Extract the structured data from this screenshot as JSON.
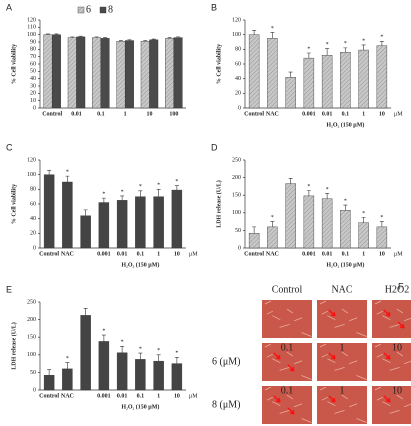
{
  "chart_data": [
    {
      "type": "grouped_bar",
      "panel": "A",
      "y_label": "% Cell viability",
      "categories": [
        "Control",
        "0.01",
        "0.1",
        "1",
        "10",
        "100"
      ],
      "series": [
        {
          "name": "6",
          "color": "#c8c8c8",
          "hatch": true,
          "values": [
            100,
            96,
            96,
            91,
            91,
            95
          ],
          "errors": [
            1,
            1,
            1,
            1,
            1,
            1
          ]
        },
        {
          "name": "8",
          "color": "#4a4a4a",
          "hatch": false,
          "values": [
            100,
            97,
            95,
            92,
            93,
            96
          ],
          "errors": [
            1,
            1,
            1,
            1,
            1,
            1
          ]
        }
      ],
      "ylim": [
        0,
        120
      ],
      "yticks": [
        0,
        10,
        20,
        30,
        40,
        50,
        60,
        70,
        80,
        90,
        100,
        110,
        120
      ]
    },
    {
      "type": "bar",
      "panel": "B",
      "y_label": "% Cell viability",
      "x_label": "H₂O₂ (150 μM)",
      "x_unit": "μM",
      "categories": [
        "Control",
        "NAC",
        null,
        "0.001",
        "0.01",
        "0.1",
        "1",
        "10"
      ],
      "values": [
        100,
        95,
        42,
        68,
        72,
        76,
        79,
        85
      ],
      "errors": [
        6,
        8,
        7,
        7,
        9,
        6,
        7,
        6
      ],
      "annotations": [
        null,
        "*",
        null,
        "*",
        "*",
        "*",
        "*",
        "*"
      ],
      "color": "#c8c8c8",
      "hatch": true,
      "ylim": [
        0,
        120
      ],
      "yticks": [
        0,
        20,
        40,
        60,
        80,
        100,
        120
      ]
    },
    {
      "type": "bar",
      "panel": "C",
      "y_label": "% Cell viability",
      "x_label": "H₂O₂ (150 μM)",
      "x_unit": "μM",
      "categories": [
        "Control",
        "NAC",
        null,
        "0.001",
        "0.01",
        "0.1",
        "1",
        "10"
      ],
      "values": [
        100,
        90,
        44,
        62,
        65,
        70,
        70,
        79
      ],
      "errors": [
        6,
        8,
        8,
        6,
        6,
        8,
        10,
        6
      ],
      "annotations": [
        null,
        "*",
        null,
        "*",
        "*",
        "*",
        "*",
        "*"
      ],
      "color": "#444444",
      "hatch": false,
      "ylim": [
        0,
        120
      ],
      "yticks": [
        0,
        20,
        40,
        60,
        80,
        100,
        120
      ]
    },
    {
      "type": "bar",
      "panel": "D",
      "y_label": "LDH release (U/L)",
      "x_label": "H₂O₂ (150 μM)",
      "x_unit": "μM",
      "categories": [
        "Control",
        "NAC",
        null,
        "0.001",
        "0.01",
        "0.1",
        "1",
        "10"
      ],
      "values": [
        42,
        60,
        183,
        148,
        140,
        107,
        72,
        60
      ],
      "errors": [
        18,
        15,
        15,
        15,
        15,
        15,
        15,
        15
      ],
      "annotations": [
        null,
        "*",
        null,
        "*",
        "*",
        "*",
        "*",
        "*"
      ],
      "color": "#c8c8c8",
      "hatch": true,
      "ylim": [
        0,
        250
      ],
      "yticks": [
        0,
        50,
        100,
        150,
        200,
        250
      ]
    },
    {
      "type": "bar",
      "panel": "E",
      "y_label": "LDH release (U/L)",
      "x_label": "H₂O₂ (150 μM)",
      "x_unit": "μM",
      "categories": [
        "Control",
        "NAC",
        null,
        "0.001",
        "0.01",
        "0.1",
        "1",
        "10"
      ],
      "values": [
        42,
        60,
        212,
        138,
        106,
        87,
        82,
        75
      ],
      "errors": [
        16,
        18,
        20,
        18,
        18,
        18,
        18,
        18
      ],
      "annotations": [
        null,
        "*",
        null,
        "*",
        "*",
        "*",
        "*",
        "*"
      ],
      "color": "#444444",
      "hatch": false,
      "ylim": [
        0,
        250
      ],
      "yticks": [
        0,
        50,
        100,
        150,
        200,
        250
      ]
    }
  ],
  "image_panel": {
    "panel": "F",
    "column_headers": [
      "Control",
      "NAC",
      "H2O2"
    ],
    "rows": [
      {
        "label": "6 (μM)",
        "cells": [
          "0.1",
          "1",
          "10"
        ]
      },
      {
        "label": "8 (μM)",
        "cells": [
          "0.1",
          "1",
          "10"
        ]
      }
    ]
  }
}
